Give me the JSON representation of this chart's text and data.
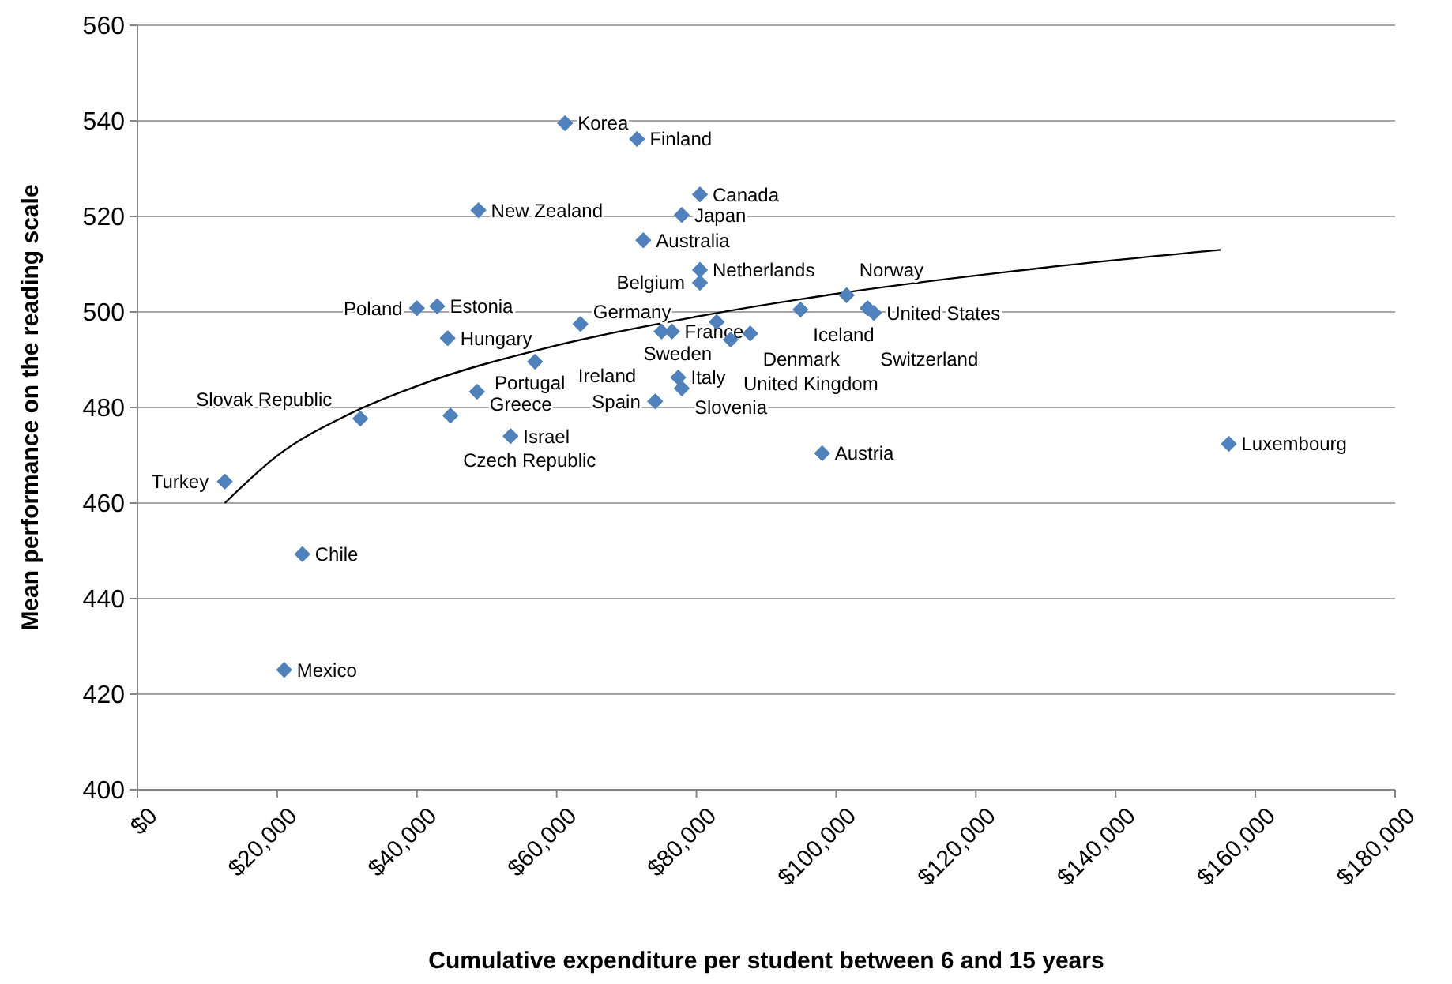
{
  "chart_data": {
    "type": "scatter",
    "xlabel": "Cumulative expenditure per student between 6 and 15 years",
    "ylabel": "Mean performance on the reading scale",
    "xlim": [
      0,
      180000
    ],
    "ylim": [
      400,
      560
    ],
    "xticks": [
      {
        "value": 0,
        "label": "$0"
      },
      {
        "value": 20000,
        "label": "$20,000"
      },
      {
        "value": 40000,
        "label": "$40,000"
      },
      {
        "value": 60000,
        "label": "$60,000"
      },
      {
        "value": 80000,
        "label": "$80,000"
      },
      {
        "value": 100000,
        "label": "$100,000"
      },
      {
        "value": 120000,
        "label": "$120,000"
      },
      {
        "value": 140000,
        "label": "$140,000"
      },
      {
        "value": 160000,
        "label": "$160,000"
      },
      {
        "value": 180000,
        "label": "$180,000"
      }
    ],
    "yticks": [
      400,
      420,
      440,
      460,
      480,
      500,
      520,
      540,
      560
    ],
    "grid": "y",
    "marker": "diamond",
    "series": [
      {
        "color": "#4f81bd",
        "x": [
          61200,
          71500,
          80500,
          48800,
          77900,
          72400,
          80500,
          80500,
          101500,
          94900,
          104500,
          105400,
          40000,
          42900,
          44400,
          63400,
          82900,
          75000,
          76500,
          84900,
          87700,
          77400,
          77900,
          74100,
          98000,
          156200,
          56900,
          48600,
          44800,
          31900,
          53400,
          12500,
          23600,
          21000
        ],
        "values": [
          539.5,
          536.2,
          524.6,
          521.3,
          520.3,
          515,
          508.8,
          506.1,
          503.5,
          500.5,
          500.8,
          499.8,
          500.8,
          501.2,
          494.5,
          497.5,
          497.9,
          495.9,
          495.9,
          494.2,
          495.5,
          486.3,
          484,
          481.3,
          470.4,
          472.4,
          489.6,
          483.3,
          478.3,
          477.7,
          474,
          464.5,
          449.3,
          425.1
        ]
      },
      {
        "type": "line",
        "color": "#000000",
        "marker": "none",
        "line_style": "solid",
        "x": [
          12500,
          20000,
          30000,
          40000,
          60000,
          80000,
          100000,
          130000,
          155000
        ],
        "values": [
          460,
          469.9,
          478.4,
          484.5,
          493,
          499,
          503.8,
          509.3,
          513
        ]
      }
    ],
    "annotations": [
      {
        "text": "Korea",
        "x": 61200,
        "y": 539.5
      },
      {
        "text": "Finland",
        "x": 71500,
        "y": 536.2
      },
      {
        "text": "Canada",
        "x": 80500,
        "y": 524.6
      },
      {
        "text": "New Zealand",
        "x": 48800,
        "y": 521.3
      },
      {
        "text": "Japan",
        "x": 77900,
        "y": 520.3
      },
      {
        "text": "Australia",
        "x": 72400,
        "y": 515
      },
      {
        "text": "Netherlands",
        "x": 80500,
        "y": 508.8
      },
      {
        "text": "Belgium",
        "x": 80500,
        "y": 506.1
      },
      {
        "text": "Norway",
        "x": 101500,
        "y": 503.5
      },
      {
        "text": "Iceland",
        "x": 94900,
        "y": 500.5
      },
      {
        "text": "Switzerland",
        "x": 104500,
        "y": 500.8
      },
      {
        "text": "United States",
        "x": 105400,
        "y": 499.8
      },
      {
        "text": "Poland",
        "x": 40000,
        "y": 500.8
      },
      {
        "text": "Estonia",
        "x": 42900,
        "y": 501.2
      },
      {
        "text": "Hungary",
        "x": 44400,
        "y": 494.5
      },
      {
        "text": "Germany",
        "x": 63400,
        "y": 497.5
      },
      {
        "text": "Sweden",
        "x": 82900,
        "y": 497.9
      },
      {
        "text": "Ireland",
        "x": 75000,
        "y": 495.9
      },
      {
        "text": "France",
        "x": 76500,
        "y": 495.9
      },
      {
        "text": "United Kingdom",
        "x": 84900,
        "y": 494.2
      },
      {
        "text": "Denmark",
        "x": 87700,
        "y": 495.5
      },
      {
        "text": "Italy",
        "x": 77400,
        "y": 486.3
      },
      {
        "text": "Slovenia",
        "x": 77900,
        "y": 484
      },
      {
        "text": "Spain",
        "x": 74100,
        "y": 481.3
      },
      {
        "text": "Austria",
        "x": 98000,
        "y": 470.4
      },
      {
        "text": "Luxembourg",
        "x": 156200,
        "y": 472.4
      },
      {
        "text": "Portugal",
        "x": 56900,
        "y": 489.6
      },
      {
        "text": "Greece",
        "x": 48600,
        "y": 483.3
      },
      {
        "text": "Czech Republic",
        "x": 44800,
        "y": 478.3
      },
      {
        "text": "Slovak Republic",
        "x": 31900,
        "y": 477.7
      },
      {
        "text": "Israel",
        "x": 53400,
        "y": 474
      },
      {
        "text": "Turkey",
        "x": 12500,
        "y": 464.5
      },
      {
        "text": "Chile",
        "x": 23600,
        "y": 449.3
      },
      {
        "text": "Mexico",
        "x": 21000,
        "y": 425.1
      }
    ]
  }
}
